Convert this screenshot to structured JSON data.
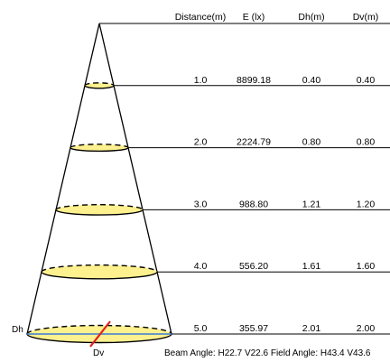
{
  "header": {
    "distance": "Distance(m)",
    "illuminance": "E (lx)",
    "dh": "Dh(m)",
    "dv": "Dv(m)"
  },
  "rows": [
    {
      "distance": "1.0",
      "illuminance": "8899.18",
      "dh": "0.40",
      "dv": "0.40"
    },
    {
      "distance": "2.0",
      "illuminance": "2224.79",
      "dh": "0.80",
      "dv": "0.80"
    },
    {
      "distance": "3.0",
      "illuminance": "988.80",
      "dh": "1.21",
      "dv": "1.20"
    },
    {
      "distance": "4.0",
      "illuminance": "556.20",
      "dh": "1.61",
      "dv": "1.60"
    },
    {
      "distance": "5.0",
      "illuminance": "355.97",
      "dh": "2.01",
      "dv": "2.00"
    }
  ],
  "labels": {
    "dh": "Dh",
    "dv": "Dv"
  },
  "footer": "Beam Angle: H22.7 V22.6  Field Angle: H43.4 V43.6",
  "colors": {
    "ellipse_fill": "#fdf08f",
    "dh_line": "#3a7bd5",
    "dv_line": "#e02020",
    "lines": "#000000"
  }
}
